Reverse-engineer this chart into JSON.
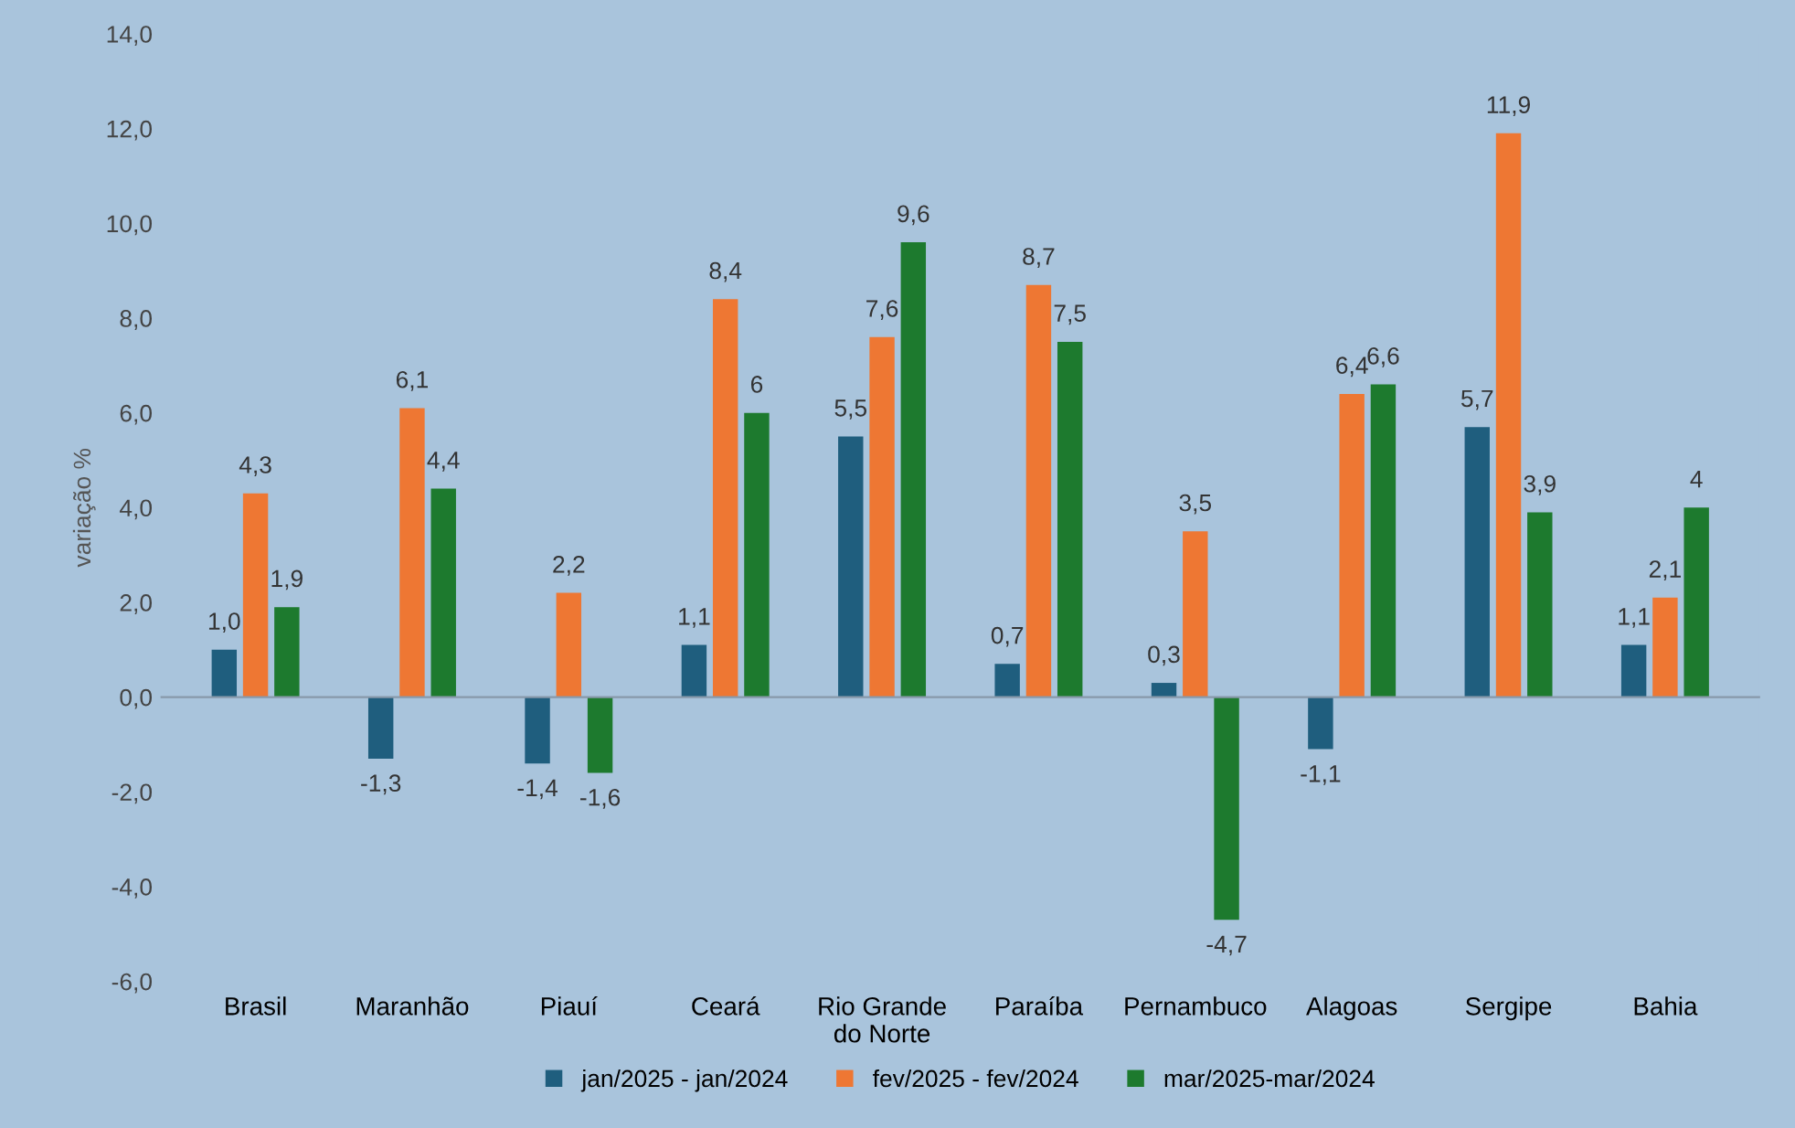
{
  "chart_data": {
    "type": "bar",
    "ylabel": "variação %",
    "categories": [
      "Brasil",
      "Maranhão",
      "Piauí",
      "Ceará",
      "Rio Grande\ndo Norte",
      "Paraíba",
      "Pernambuco",
      "Alagoas",
      "Sergipe",
      "Bahia"
    ],
    "series": [
      {
        "name": "jan/2025 - jan/2024",
        "color": "#1f5e7e",
        "values": [
          1.0,
          -1.3,
          -1.4,
          1.1,
          5.5,
          0.7,
          0.3,
          -1.1,
          5.7,
          1.1
        ],
        "value_labels": [
          "1,0",
          "-1,3",
          "-1,4",
          "1,1",
          "5,5",
          "0,7",
          "0,3",
          "-1,1",
          "5,7",
          "1,1"
        ]
      },
      {
        "name": "fev/2025 - fev/2024",
        "color": "#ee7733",
        "values": [
          4.3,
          6.1,
          2.2,
          8.4,
          7.6,
          8.7,
          3.5,
          6.4,
          11.9,
          2.1
        ],
        "value_labels": [
          "4,3",
          "6,1",
          "2,2",
          "8,4",
          "7,6",
          "8,7",
          "3,5",
          "6,4",
          "11,9",
          "2,1"
        ]
      },
      {
        "name": "mar/2025-mar/2024",
        "color": "#1d7a2e",
        "values": [
          1.9,
          4.4,
          -1.6,
          6,
          9.6,
          7.5,
          -4.7,
          6.6,
          3.9,
          4
        ],
        "value_labels": [
          "1,9",
          "4,4",
          "-1,6",
          "6",
          "9,6",
          "7,5",
          "-4,7",
          "6,6",
          "3,9",
          "4"
        ]
      }
    ],
    "ylim": [
      -6,
      14
    ],
    "yticks": [
      {
        "value": -6,
        "label": "-6,0"
      },
      {
        "value": -4,
        "label": "-4,0"
      },
      {
        "value": -2,
        "label": "-2,0"
      },
      {
        "value": 0,
        "label": "0,0"
      },
      {
        "value": 2,
        "label": "2,0"
      },
      {
        "value": 4,
        "label": "4,0"
      },
      {
        "value": 6,
        "label": "6,0"
      },
      {
        "value": 8,
        "label": "8,0"
      },
      {
        "value": 10,
        "label": "10,0"
      },
      {
        "value": 12,
        "label": "12,0"
      },
      {
        "value": 14,
        "label": "14,0"
      }
    ],
    "legend": "bottom"
  }
}
